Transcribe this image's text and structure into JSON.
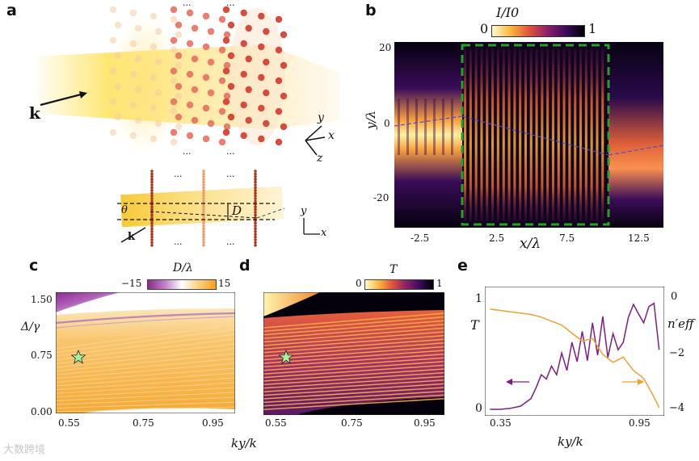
{
  "panels": {
    "a": "a",
    "b": "b",
    "c": "c",
    "d": "d",
    "e": "e"
  },
  "panel_a": {
    "k_label": "k",
    "k_small": "k",
    "theta": "θ",
    "D": "D",
    "ellipsis": "···",
    "axes3d": {
      "x": "x",
      "y": "y",
      "z": "z"
    },
    "axes2d": {
      "x": "x",
      "y": "y"
    }
  },
  "chart_data": [
    {
      "panel": "b",
      "type": "heatmap",
      "title": "I/I0",
      "colorbar": {
        "min_label": "0",
        "max_label": "1"
      },
      "xlabel": "x/λ",
      "ylabel": "y/λ",
      "xticks": [
        "-2.5",
        "2.5",
        "7.5",
        "12.5"
      ],
      "yticks": [
        "20",
        "0",
        "-20"
      ],
      "xlim": [
        -5,
        15
      ],
      "ylim": [
        -28,
        22
      ]
    },
    {
      "panel": "c",
      "type": "heatmap",
      "title": "D/λ",
      "colorbar": {
        "min_label": "−15",
        "max_label": "15"
      },
      "xlabel": "ky/k",
      "ylabel": "Δ/γ",
      "xticks": [
        "0.55",
        "0.75",
        "0.95"
      ],
      "yticks": [
        "1.50",
        "0.75",
        "0.00"
      ],
      "xlim": [
        0.52,
        0.97
      ],
      "ylim": [
        0,
        1.5
      ],
      "marker": {
        "x": 0.57,
        "y": 0.73,
        "symbol": "star"
      }
    },
    {
      "panel": "d",
      "type": "heatmap",
      "title": "T",
      "colorbar": {
        "min_label": "0",
        "max_label": "1"
      },
      "xlabel": "",
      "ylabel": "",
      "xticks": [
        "0.55",
        "0.75",
        "0.95"
      ],
      "xlim": [
        0.52,
        0.97
      ],
      "ylim": [
        0,
        1.5
      ],
      "marker": {
        "x": 0.57,
        "y": 0.73,
        "symbol": "star"
      }
    },
    {
      "panel": "e",
      "type": "line",
      "xlabel": "ky/k",
      "ylabel_left": "T",
      "ylabel_right": "n′eff",
      "xticks": [
        "0.35",
        "0.95"
      ],
      "yticks_left": [
        "1",
        "0"
      ],
      "yticks_right": [
        "0",
        "−2",
        "−4"
      ],
      "xlim": [
        0.3,
        1.0
      ],
      "series": [
        {
          "name": "T",
          "color": "#7b1f7e",
          "axis": "left",
          "x": [
            0.32,
            0.36,
            0.4,
            0.44,
            0.48,
            0.5,
            0.52,
            0.54,
            0.56,
            0.58,
            0.6,
            0.62,
            0.64,
            0.66,
            0.68,
            0.7,
            0.72,
            0.74,
            0.76,
            0.78,
            0.8,
            0.82,
            0.84,
            0.86,
            0.88,
            0.9,
            0.92,
            0.94,
            0.96,
            0.98
          ],
          "y": [
            0.0,
            0.0,
            0.01,
            0.03,
            0.1,
            0.2,
            0.32,
            0.28,
            0.4,
            0.32,
            0.52,
            0.36,
            0.62,
            0.44,
            0.72,
            0.45,
            0.8,
            0.5,
            0.86,
            0.48,
            0.7,
            0.55,
            0.62,
            0.85,
            0.97,
            0.88,
            0.8,
            0.95,
            0.98,
            0.55
          ]
        },
        {
          "name": "n'eff",
          "color": "#f0a030",
          "axis": "right",
          "x": [
            0.32,
            0.36,
            0.4,
            0.44,
            0.48,
            0.52,
            0.56,
            0.6,
            0.64,
            0.68,
            0.72,
            0.76,
            0.8,
            0.84,
            0.88,
            0.92,
            0.96,
            0.98
          ],
          "y": [
            -0.3,
            -0.35,
            -0.4,
            -0.45,
            -0.5,
            -0.6,
            -0.75,
            -0.9,
            -1.2,
            -1.5,
            -1.4,
            -2.0,
            -2.3,
            -2.1,
            -2.6,
            -2.9,
            -3.6,
            -4.0
          ]
        }
      ],
      "arrows": [
        "left-purple",
        "right-orange"
      ]
    }
  ],
  "watermark": "大数跨境"
}
